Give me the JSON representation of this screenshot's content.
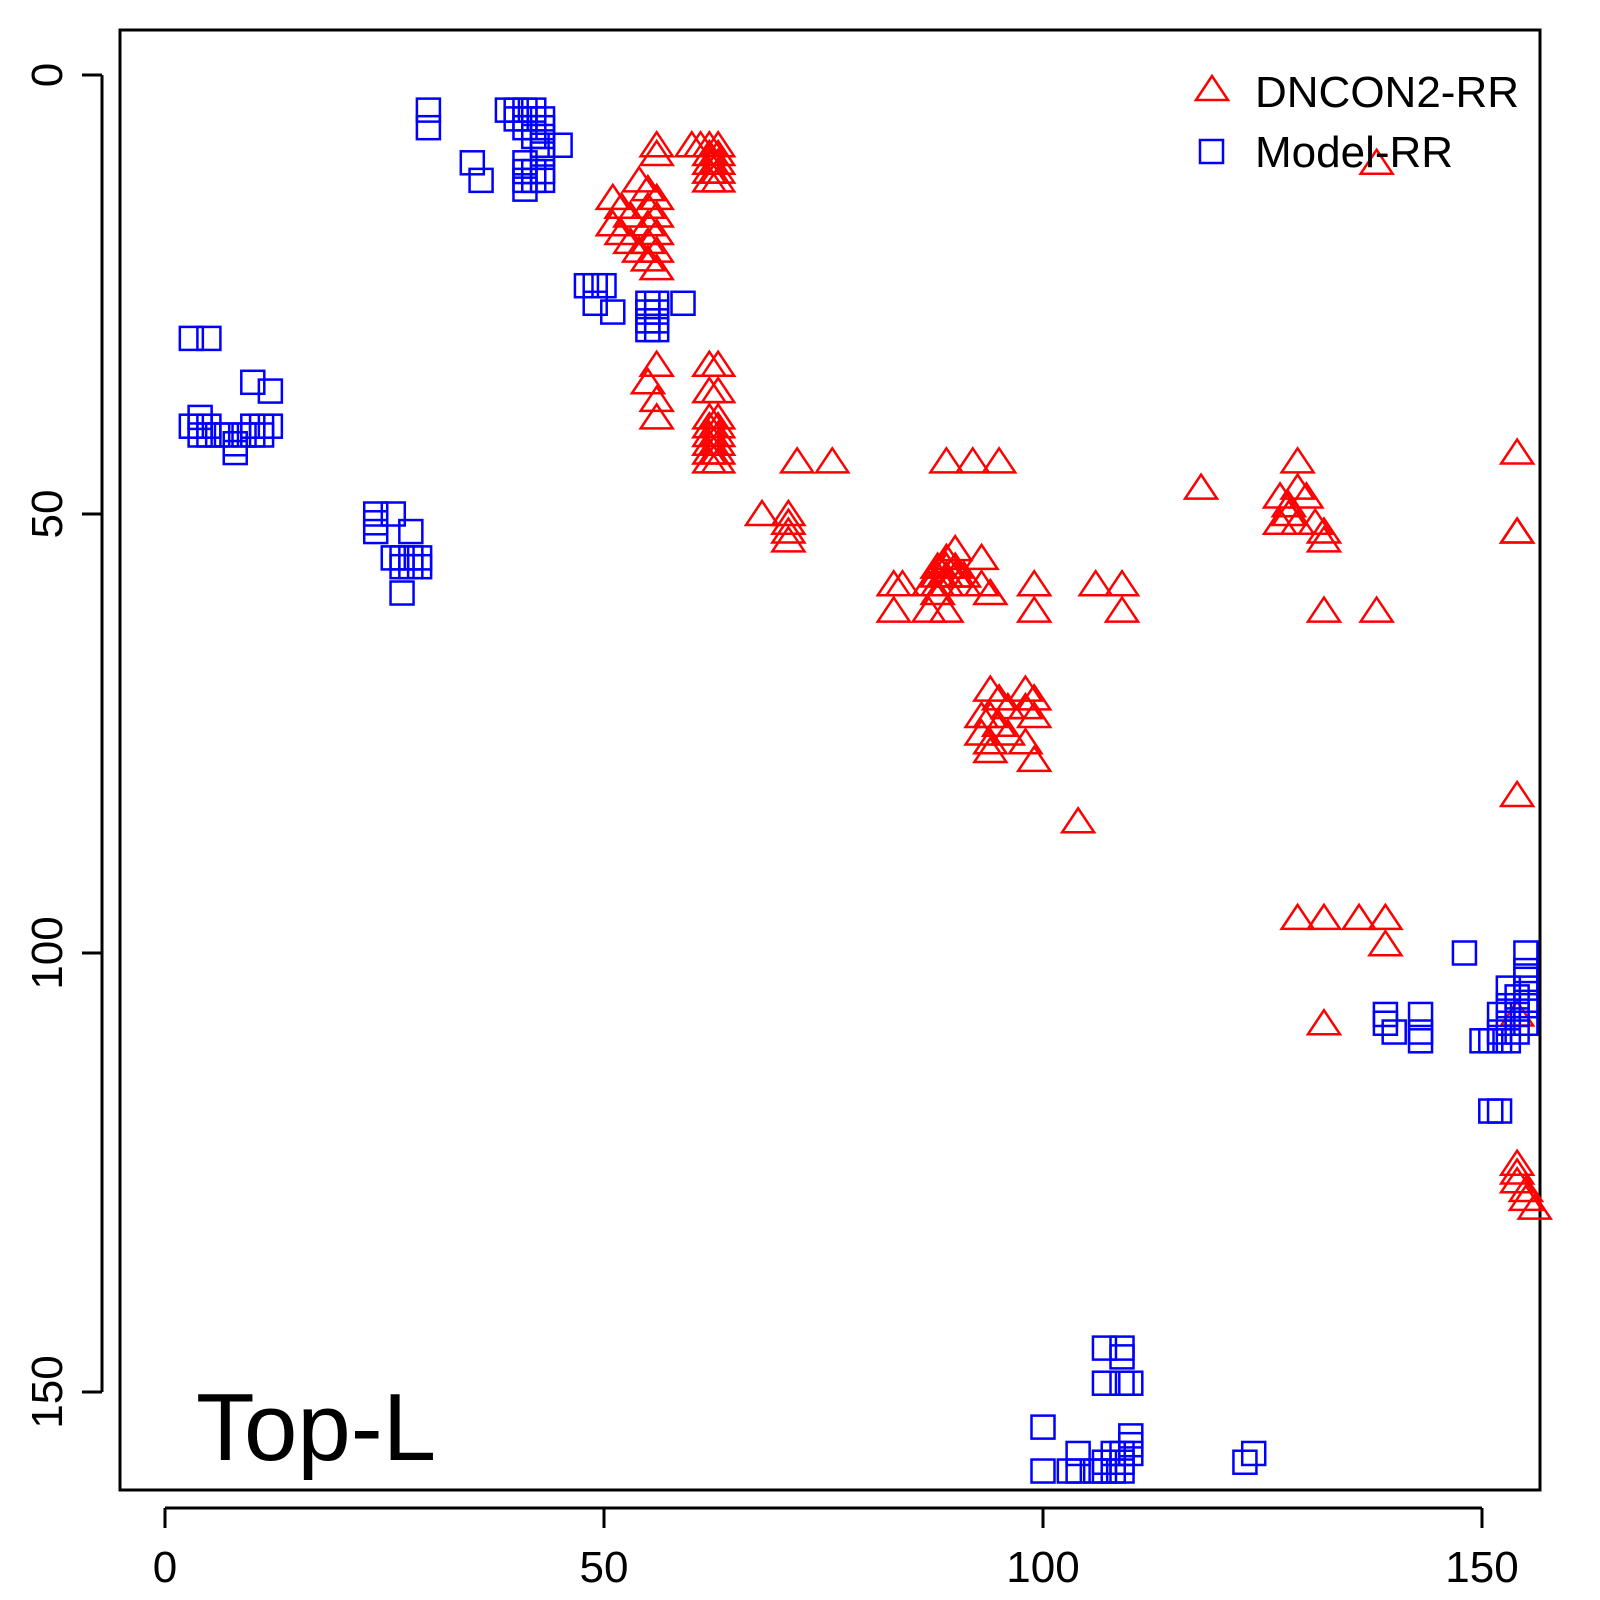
{
  "chart_data": {
    "type": "scatter",
    "title": "",
    "xlabel": "",
    "ylabel": "",
    "xlim": [
      -5,
      156
    ],
    "ylim": [
      -5,
      161
    ],
    "y_reversed": true,
    "x_ticks": [
      "0",
      "50",
      "100",
      "150"
    ],
    "y_ticks": [
      "0",
      "50",
      "100",
      "150"
    ],
    "grid": false,
    "legend_position": "top-right",
    "annotation": "Top-L",
    "colors": {
      "DNCON2-RR": "#ff0000",
      "Model-RR": "#0000ff"
    },
    "series": [
      {
        "name": "DNCON2-RR",
        "marker": "triangle",
        "points": [
          [
            51,
            14
          ],
          [
            52,
            15
          ],
          [
            53,
            16
          ],
          [
            51,
            17
          ],
          [
            52,
            18
          ],
          [
            53,
            19
          ],
          [
            54,
            20
          ],
          [
            55,
            21
          ],
          [
            56,
            22
          ],
          [
            54,
            12
          ],
          [
            55,
            13
          ],
          [
            56,
            14
          ],
          [
            55,
            15
          ],
          [
            56,
            16
          ],
          [
            55,
            17
          ],
          [
            56,
            18
          ],
          [
            55,
            19
          ],
          [
            56,
            20
          ],
          [
            60,
            8
          ],
          [
            61,
            8
          ],
          [
            62,
            8
          ],
          [
            63,
            8
          ],
          [
            62,
            9
          ],
          [
            63,
            9
          ],
          [
            62,
            10
          ],
          [
            63,
            10
          ],
          [
            62,
            11
          ],
          [
            63,
            11
          ],
          [
            62,
            12
          ],
          [
            63,
            12
          ],
          [
            56,
            8
          ],
          [
            56,
            9
          ],
          [
            56,
            33
          ],
          [
            55,
            35
          ],
          [
            56,
            37
          ],
          [
            56,
            39
          ],
          [
            62,
            33
          ],
          [
            63,
            33
          ],
          [
            62,
            36
          ],
          [
            63,
            36
          ],
          [
            62,
            39
          ],
          [
            63,
            39
          ],
          [
            62,
            40
          ],
          [
            63,
            40
          ],
          [
            62,
            41
          ],
          [
            63,
            41
          ],
          [
            62,
            42
          ],
          [
            63,
            42
          ],
          [
            62,
            43
          ],
          [
            63,
            43
          ],
          [
            62,
            44
          ],
          [
            63,
            44
          ],
          [
            72,
            44
          ],
          [
            76,
            44
          ],
          [
            68,
            50
          ],
          [
            71,
            50
          ],
          [
            71,
            51
          ],
          [
            71,
            52
          ],
          [
            71,
            53
          ],
          [
            89,
            44
          ],
          [
            92,
            44
          ],
          [
            95,
            44
          ],
          [
            83,
            58
          ],
          [
            84,
            58
          ],
          [
            83,
            61
          ],
          [
            87,
            58
          ],
          [
            88,
            57
          ],
          [
            89,
            56
          ],
          [
            88,
            59
          ],
          [
            89,
            58
          ],
          [
            90,
            57
          ],
          [
            91,
            58
          ],
          [
            88,
            56
          ],
          [
            89,
            55
          ],
          [
            90,
            54
          ],
          [
            88,
            58
          ],
          [
            89,
            57
          ],
          [
            90,
            56
          ],
          [
            91,
            57
          ],
          [
            87,
            61
          ],
          [
            89,
            61
          ],
          [
            93,
            58
          ],
          [
            94,
            59
          ],
          [
            93,
            55
          ],
          [
            99,
            58
          ],
          [
            99,
            61
          ],
          [
            94,
            70
          ],
          [
            95,
            71
          ],
          [
            96,
            72
          ],
          [
            94,
            73
          ],
          [
            95,
            74
          ],
          [
            96,
            75
          ],
          [
            93,
            73
          ],
          [
            94,
            76
          ],
          [
            93,
            75
          ],
          [
            94,
            77
          ],
          [
            98,
            70
          ],
          [
            99,
            71
          ],
          [
            98,
            72
          ],
          [
            99,
            73
          ],
          [
            98,
            76
          ],
          [
            99,
            78
          ],
          [
            104,
            85
          ],
          [
            106,
            58
          ],
          [
            109,
            58
          ],
          [
            109,
            61
          ],
          [
            118,
            47
          ],
          [
            129,
            44
          ],
          [
            127,
            48
          ],
          [
            128,
            49
          ],
          [
            129,
            47
          ],
          [
            130,
            48
          ],
          [
            128,
            50
          ],
          [
            129,
            51
          ],
          [
            127,
            51
          ],
          [
            131,
            51
          ],
          [
            132,
            52
          ],
          [
            132,
            53
          ],
          [
            132,
            61
          ],
          [
            138,
            61
          ],
          [
            154,
            43
          ],
          [
            154,
            52
          ],
          [
            154,
            52
          ],
          [
            154,
            82
          ],
          [
            129,
            96
          ],
          [
            132,
            96
          ],
          [
            136,
            96
          ],
          [
            139,
            96
          ],
          [
            139,
            99
          ],
          [
            132,
            108
          ],
          [
            154,
            107
          ],
          [
            154,
            124
          ],
          [
            154,
            125
          ],
          [
            154,
            126
          ],
          [
            155,
            127
          ],
          [
            155,
            128
          ],
          [
            156,
            129
          ],
          [
            138,
            10
          ]
        ]
      },
      {
        "name": "Model-RR",
        "marker": "square",
        "points": [
          [
            30,
            4
          ],
          [
            30,
            6
          ],
          [
            39,
            4
          ],
          [
            40,
            4
          ],
          [
            41,
            4
          ],
          [
            42,
            4
          ],
          [
            40,
            5
          ],
          [
            41,
            5
          ],
          [
            42,
            5
          ],
          [
            43,
            5
          ],
          [
            41,
            6
          ],
          [
            42,
            6
          ],
          [
            43,
            6
          ],
          [
            42,
            7
          ],
          [
            43,
            7
          ],
          [
            43,
            8
          ],
          [
            43,
            9
          ],
          [
            45,
            8
          ],
          [
            42,
            11
          ],
          [
            43,
            11
          ],
          [
            42,
            12
          ],
          [
            43,
            12
          ],
          [
            35,
            10
          ],
          [
            36,
            12
          ],
          [
            41,
            10
          ],
          [
            41,
            11
          ],
          [
            41,
            12
          ],
          [
            41,
            13
          ],
          [
            48,
            24
          ],
          [
            49,
            24
          ],
          [
            50,
            24
          ],
          [
            49,
            26
          ],
          [
            51,
            27
          ],
          [
            55,
            26
          ],
          [
            56,
            26
          ],
          [
            55,
            27
          ],
          [
            56,
            27
          ],
          [
            55,
            28
          ],
          [
            56,
            28
          ],
          [
            55,
            29
          ],
          [
            56,
            29
          ],
          [
            59,
            26
          ],
          [
            3,
            30
          ],
          [
            5,
            30
          ],
          [
            3,
            40
          ],
          [
            4,
            39
          ],
          [
            4,
            40
          ],
          [
            4,
            41
          ],
          [
            5,
            40
          ],
          [
            5,
            41
          ],
          [
            6,
            41
          ],
          [
            7,
            41
          ],
          [
            8,
            42
          ],
          [
            9,
            41
          ],
          [
            10,
            40
          ],
          [
            10,
            41
          ],
          [
            11,
            40
          ],
          [
            11,
            41
          ],
          [
            12,
            40
          ],
          [
            8,
            43
          ],
          [
            10,
            35
          ],
          [
            12,
            36
          ],
          [
            24,
            50
          ],
          [
            24,
            51
          ],
          [
            24,
            52
          ],
          [
            26,
            50
          ],
          [
            28,
            52
          ],
          [
            26,
            55
          ],
          [
            27,
            55
          ],
          [
            28,
            55
          ],
          [
            29,
            55
          ],
          [
            27,
            56
          ],
          [
            28,
            56
          ],
          [
            29,
            56
          ],
          [
            27,
            59
          ],
          [
            148,
            100
          ],
          [
            155,
            100
          ],
          [
            155,
            102
          ],
          [
            155,
            103
          ],
          [
            155,
            104
          ],
          [
            154,
            105
          ],
          [
            155,
            106
          ],
          [
            154,
            107
          ],
          [
            153,
            104
          ],
          [
            153,
            106
          ],
          [
            152,
            107
          ],
          [
            153,
            108
          ],
          [
            152,
            109
          ],
          [
            153,
            110
          ],
          [
            150,
            110
          ],
          [
            151,
            110
          ],
          [
            152,
            110
          ],
          [
            155,
            108
          ],
          [
            154,
            109
          ],
          [
            139,
            107
          ],
          [
            139,
            108
          ],
          [
            140,
            109
          ],
          [
            143,
            107
          ],
          [
            143,
            109
          ],
          [
            143,
            110
          ],
          [
            151,
            118
          ],
          [
            152,
            118
          ],
          [
            107,
            145
          ],
          [
            109,
            145
          ],
          [
            109,
            146
          ],
          [
            107,
            149
          ],
          [
            109,
            149
          ],
          [
            110,
            149
          ],
          [
            100,
            154
          ],
          [
            104,
            157
          ],
          [
            108,
            157
          ],
          [
            109,
            158
          ],
          [
            110,
            157
          ],
          [
            110,
            156
          ],
          [
            110,
            155
          ],
          [
            100,
            159
          ],
          [
            103,
            159
          ],
          [
            104,
            159
          ],
          [
            106,
            159
          ],
          [
            107,
            159
          ],
          [
            108,
            159
          ],
          [
            108,
            158
          ],
          [
            109,
            157
          ],
          [
            107,
            158
          ],
          [
            109,
            159
          ],
          [
            123,
            158
          ],
          [
            124,
            157
          ]
        ]
      }
    ]
  }
}
